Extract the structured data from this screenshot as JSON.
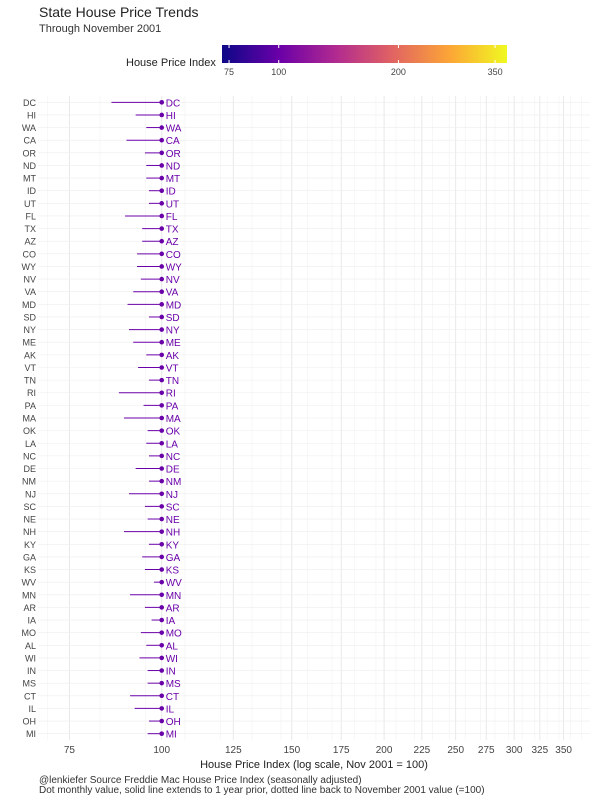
{
  "title": "State House Price Trends",
  "subtitle": "Through November 2001",
  "legend": {
    "title": "House Price Index",
    "ticks": [
      75,
      100,
      200,
      350
    ],
    "colors": [
      "#0d0887",
      "#6a00a8",
      "#b12a90",
      "#e16462",
      "#fca636",
      "#f0f921"
    ]
  },
  "footer": {
    "line1": "@lenkiefer Source Freddie Mac House Price Index (seasonally adjusted)",
    "line2": "Dot monthly value, solid line extends to 1 year prior, dotted line back to November 2001 value (=100)"
  },
  "chart_data": {
    "type": "scatter",
    "xlabel": "House Price Index (log scale, Nov 2001 = 100)",
    "xscale": "log",
    "xlim": [
      68,
      380
    ],
    "xticks": [
      75,
      100,
      125,
      150,
      175,
      200,
      225,
      250,
      275,
      300,
      325,
      350
    ],
    "grid": true,
    "point_color": "#6a00a8",
    "states": [
      "DC",
      "HI",
      "WA",
      "CA",
      "OR",
      "ND",
      "MT",
      "ID",
      "UT",
      "FL",
      "TX",
      "AZ",
      "CO",
      "WY",
      "NV",
      "VA",
      "MD",
      "SD",
      "NY",
      "ME",
      "AK",
      "VT",
      "TN",
      "RI",
      "PA",
      "MA",
      "OK",
      "LA",
      "NC",
      "DE",
      "NM",
      "NJ",
      "SC",
      "NE",
      "NH",
      "KY",
      "GA",
      "KS",
      "WV",
      "MN",
      "AR",
      "IA",
      "MO",
      "AL",
      "WI",
      "IN",
      "MS",
      "CT",
      "IL",
      "OH",
      "MI"
    ],
    "value": [
      100,
      100,
      100,
      100,
      100,
      100,
      100,
      100,
      100,
      100,
      100,
      100,
      100,
      100,
      100,
      100,
      100,
      100,
      100,
      100,
      100,
      100,
      100,
      100,
      100,
      100,
      100,
      100,
      100,
      100,
      100,
      100,
      100,
      100,
      100,
      100,
      100,
      100,
      100,
      100,
      100,
      100,
      100,
      100,
      100,
      100,
      100,
      100,
      100,
      100,
      100
    ],
    "year_prior": [
      85.5,
      92.2,
      95.3,
      89.6,
      94.9,
      95.3,
      95.3,
      96.1,
      96.1,
      89.2,
      94.1,
      94.1,
      92.6,
      92.6,
      93.7,
      91.5,
      89.9,
      96.1,
      90.3,
      91.5,
      95.3,
      92.9,
      96.1,
      87.5,
      94.5,
      88.9,
      95.7,
      95.3,
      96.1,
      92.2,
      96.1,
      90.3,
      94.9,
      95.7,
      88.9,
      96.1,
      94.1,
      94.9,
      97.6,
      90.6,
      94.9,
      96.9,
      93.7,
      95.3,
      93.3,
      95.7,
      95.7,
      90.6,
      91.9,
      96.1,
      95.7
    ]
  }
}
